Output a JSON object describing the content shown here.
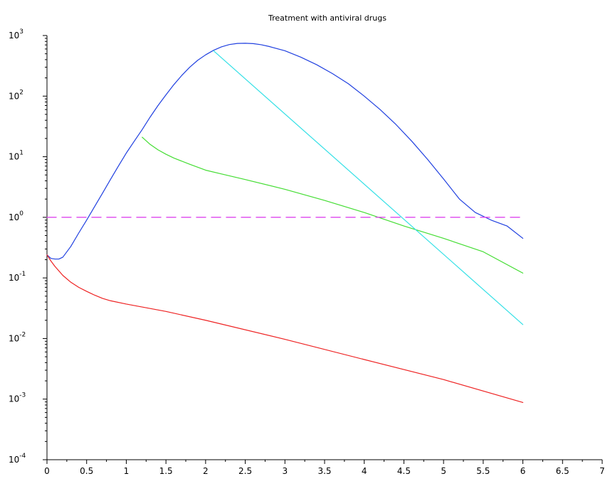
{
  "chart_data": {
    "type": "line",
    "title": "Treatment with antiviral drugs",
    "xlabel": "",
    "ylabel": "",
    "y_scale": "log10",
    "xlim": [
      0,
      7
    ],
    "ylim": [
      0.0001,
      1000
    ],
    "grid": false,
    "x_ticks": [
      "0",
      "0.5",
      "1",
      "1.5",
      "2",
      "2.5",
      "3",
      "3.5",
      "4",
      "4.5",
      "5",
      "5.5",
      "6",
      "6.5",
      "7"
    ],
    "y_ticks": [
      {
        "base": "10",
        "exp": "3"
      },
      {
        "base": "10",
        "exp": "2"
      },
      {
        "base": "10",
        "exp": "1"
      },
      {
        "base": "10",
        "exp": "0"
      },
      {
        "base": "10",
        "exp": "-1"
      },
      {
        "base": "10",
        "exp": "-2"
      },
      {
        "base": "10",
        "exp": "-3"
      },
      {
        "base": "10",
        "exp": "-4"
      }
    ],
    "series": [
      {
        "color": "#2040e0",
        "style": "solid",
        "points": [
          [
            0,
            0.24
          ],
          [
            0.05,
            0.21
          ],
          [
            0.1,
            0.205
          ],
          [
            0.15,
            0.205
          ],
          [
            0.2,
            0.22
          ],
          [
            0.3,
            0.33
          ],
          [
            0.4,
            0.55
          ],
          [
            0.5,
            0.9
          ],
          [
            0.6,
            1.5
          ],
          [
            0.7,
            2.5
          ],
          [
            0.8,
            4.2
          ],
          [
            0.9,
            7
          ],
          [
            1.0,
            11.5
          ],
          [
            1.1,
            18
          ],
          [
            1.2,
            28
          ],
          [
            1.3,
            45
          ],
          [
            1.4,
            70
          ],
          [
            1.5,
            105
          ],
          [
            1.6,
            155
          ],
          [
            1.7,
            220
          ],
          [
            1.8,
            300
          ],
          [
            1.9,
            390
          ],
          [
            2.0,
            480
          ],
          [
            2.1,
            570
          ],
          [
            2.2,
            650
          ],
          [
            2.3,
            710
          ],
          [
            2.4,
            740
          ],
          [
            2.5,
            745
          ],
          [
            2.6,
            735
          ],
          [
            2.7,
            705
          ],
          [
            2.8,
            660
          ],
          [
            3.0,
            560
          ],
          [
            3.2,
            440
          ],
          [
            3.4,
            330
          ],
          [
            3.6,
            235
          ],
          [
            3.8,
            160
          ],
          [
            4.0,
            100
          ],
          [
            4.2,
            60
          ],
          [
            4.4,
            34
          ],
          [
            4.6,
            18
          ],
          [
            4.8,
            9
          ],
          [
            5.0,
            4.3
          ],
          [
            5.2,
            2.0
          ],
          [
            5.4,
            1.2
          ],
          [
            5.6,
            0.9
          ],
          [
            5.8,
            0.72
          ],
          [
            6.0,
            0.45
          ]
        ]
      },
      {
        "color": "#44dd33",
        "style": "solid",
        "points": [
          [
            1.2,
            21
          ],
          [
            1.3,
            16
          ],
          [
            1.4,
            13
          ],
          [
            1.5,
            11
          ],
          [
            1.6,
            9.5
          ],
          [
            1.8,
            7.5
          ],
          [
            2.0,
            6.0
          ],
          [
            2.2,
            5.2
          ],
          [
            2.5,
            4.2
          ],
          [
            3.0,
            2.9
          ],
          [
            3.5,
            1.9
          ],
          [
            4.0,
            1.2
          ],
          [
            4.5,
            0.72
          ],
          [
            5.0,
            0.45
          ],
          [
            5.5,
            0.27
          ],
          [
            6.0,
            0.12
          ]
        ]
      },
      {
        "color": "#33e0e6",
        "style": "solid",
        "points": [
          [
            2.1,
            560
          ],
          [
            6.0,
            0.017
          ]
        ]
      },
      {
        "color": "#ee2222",
        "style": "solid",
        "points": [
          [
            0,
            0.24
          ],
          [
            0.05,
            0.19
          ],
          [
            0.1,
            0.155
          ],
          [
            0.2,
            0.11
          ],
          [
            0.3,
            0.085
          ],
          [
            0.4,
            0.07
          ],
          [
            0.5,
            0.06
          ],
          [
            0.6,
            0.052
          ],
          [
            0.7,
            0.046
          ],
          [
            0.8,
            0.042
          ],
          [
            1.0,
            0.037
          ],
          [
            1.5,
            0.028
          ],
          [
            2.0,
            0.02
          ],
          [
            3.0,
            0.0097
          ],
          [
            4.0,
            0.0045
          ],
          [
            5.0,
            0.0021
          ],
          [
            6.0,
            0.00088
          ]
        ]
      },
      {
        "color": "#dd44ee",
        "style": "dashed",
        "points": [
          [
            0,
            1
          ],
          [
            6,
            1
          ]
        ]
      }
    ]
  }
}
